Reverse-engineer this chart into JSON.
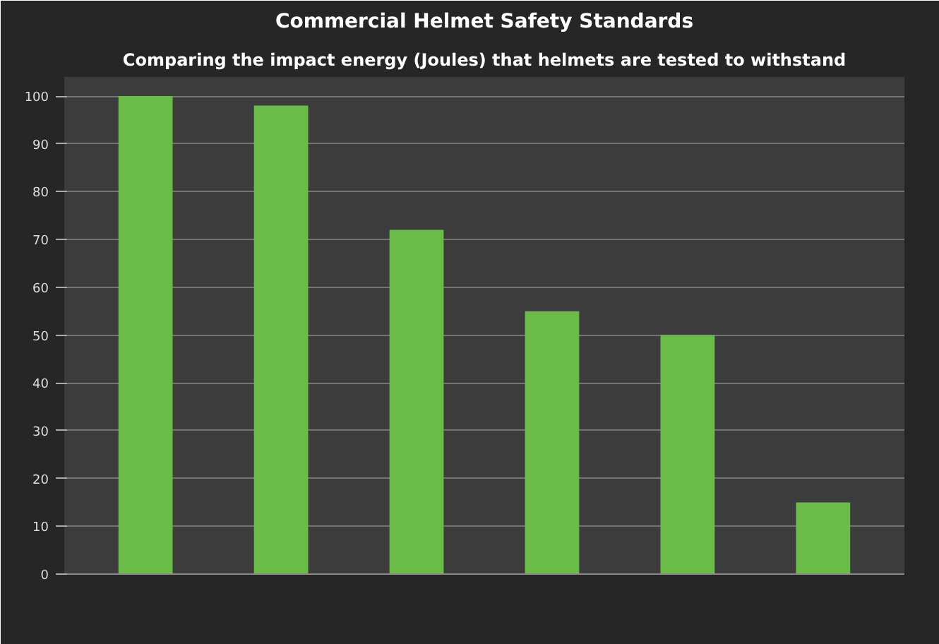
{
  "chart_data": {
    "type": "bar",
    "title": "Commercial Helmet Safety Standards",
    "subtitle": "Comparing the impact energy (Joules) that helmets are tested to withstand",
    "categories": [
      null,
      null,
      null,
      null,
      null,
      null
    ],
    "values": [
      100,
      98,
      72,
      55,
      50,
      15
    ],
    "color": "#6abb47",
    "ylim": [
      0,
      104
    ],
    "yticks": [
      0,
      10,
      20,
      30,
      40,
      50,
      60,
      70,
      80,
      90,
      100
    ],
    "grid": "y"
  }
}
